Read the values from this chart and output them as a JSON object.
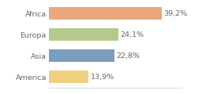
{
  "categories": [
    "Africa",
    "Europa",
    "Asia",
    "America"
  ],
  "values": [
    39.2,
    24.1,
    22.8,
    13.9
  ],
  "labels": [
    "39,2%",
    "24,1%",
    "22,8%",
    "13,9%"
  ],
  "bar_colors": [
    "#e8a87c",
    "#b5c98e",
    "#7b9dc0",
    "#f0d080"
  ],
  "background_color": "#ffffff",
  "xlim": [
    0,
    46
  ],
  "bar_height": 0.62,
  "label_fontsize": 6.8,
  "tick_fontsize": 6.8,
  "label_color": "#666666",
  "tick_color": "#666666"
}
